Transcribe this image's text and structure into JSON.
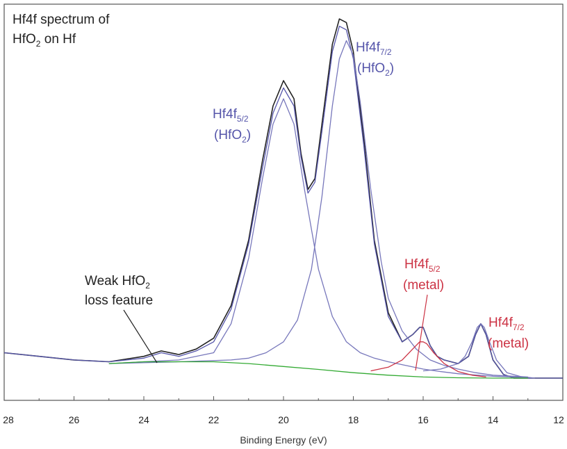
{
  "chart_data": {
    "type": "line",
    "xlabel": "Binding Energy (eV)",
    "xlim": [
      28,
      12
    ],
    "x_reversed": true,
    "x_ticks": [
      "28",
      "26",
      "24",
      "22",
      "20",
      "18",
      "16",
      "14",
      "12"
    ],
    "annotations": {
      "title": {
        "line1": "Hf4f spectrum of",
        "line2_pre": "HfO",
        "line2_sub": "2",
        "line2_post": " on Hf"
      },
      "hfo2_52": {
        "main": "Hf4f",
        "sub": "5/2",
        "line2_pre": "(HfO",
        "line2_sub": "2",
        "line2_post": ")"
      },
      "hfo2_72": {
        "main": "Hf4f",
        "sub": "7/2",
        "line2_pre": "(HfO",
        "line2_sub": "2",
        "line2_post": ")"
      },
      "metal_52": {
        "main": "Hf4f",
        "sub": "5/2",
        "line2": "(metal)"
      },
      "metal_72": {
        "main": "Hf4f",
        "sub": "7/2",
        "line2": "(metal)"
      },
      "loss": {
        "line1_pre": "Weak HfO",
        "line1_sub": "2",
        "line2": "loss feature"
      }
    },
    "series": [
      {
        "role": "measured",
        "color": "#222222",
        "x": [
          28.0,
          27.0,
          26.0,
          25.0,
          24.0,
          23.5,
          23.0,
          22.5,
          22.0,
          21.5,
          21.0,
          20.6,
          20.3,
          20.0,
          19.7,
          19.5,
          19.3,
          19.1,
          18.9,
          18.6,
          18.4,
          18.2,
          18.0,
          17.7,
          17.4,
          17.0,
          16.6,
          16.3,
          16.1,
          16.0,
          15.8,
          15.6,
          15.4,
          15.0,
          14.7,
          14.5,
          14.35,
          14.2,
          14.0,
          13.7,
          13.4,
          13.0,
          12.5,
          12.0
        ],
        "y": [
          0.07,
          0.06,
          0.05,
          0.045,
          0.06,
          0.075,
          0.065,
          0.08,
          0.11,
          0.2,
          0.38,
          0.6,
          0.75,
          0.82,
          0.77,
          0.62,
          0.52,
          0.55,
          0.7,
          0.92,
          0.99,
          0.98,
          0.9,
          0.66,
          0.38,
          0.18,
          0.1,
          0.12,
          0.14,
          0.14,
          0.09,
          0.06,
          0.05,
          0.04,
          0.06,
          0.12,
          0.15,
          0.12,
          0.05,
          0.01,
          0.0,
          0.0,
          0.0,
          0.0
        ]
      },
      {
        "role": "envelope-fit",
        "color": "#5555aa",
        "x": [
          28.0,
          27.0,
          26.0,
          25.0,
          24.0,
          23.5,
          23.0,
          22.5,
          22.0,
          21.5,
          21.0,
          20.6,
          20.3,
          20.0,
          19.7,
          19.5,
          19.3,
          19.1,
          18.9,
          18.6,
          18.4,
          18.2,
          18.0,
          17.7,
          17.4,
          17.0,
          16.6,
          16.3,
          16.1,
          16.0,
          15.8,
          15.6,
          15.4,
          15.0,
          14.7,
          14.5,
          14.35,
          14.2,
          14.0,
          13.7,
          13.4,
          13.0,
          12.5,
          12.0
        ],
        "y": [
          0.07,
          0.06,
          0.05,
          0.045,
          0.055,
          0.07,
          0.06,
          0.075,
          0.1,
          0.19,
          0.37,
          0.58,
          0.73,
          0.8,
          0.75,
          0.61,
          0.51,
          0.54,
          0.68,
          0.9,
          0.97,
          0.96,
          0.88,
          0.64,
          0.37,
          0.17,
          0.1,
          0.12,
          0.14,
          0.14,
          0.09,
          0.06,
          0.05,
          0.04,
          0.06,
          0.12,
          0.15,
          0.12,
          0.05,
          0.01,
          0.0,
          0.0,
          0.0,
          0.0
        ]
      },
      {
        "role": "component-HfO2-5/2",
        "color": "#7777bb",
        "x": [
          25.0,
          24.0,
          23.0,
          22.0,
          21.5,
          21.0,
          20.6,
          20.3,
          20.0,
          19.7,
          19.4,
          19.0,
          18.6,
          18.2,
          17.8,
          17.4,
          17.0,
          16.5,
          16.0,
          15.5,
          15.0,
          14.0,
          13.0
        ],
        "y": [
          0.04,
          0.045,
          0.05,
          0.07,
          0.15,
          0.33,
          0.55,
          0.7,
          0.77,
          0.7,
          0.52,
          0.3,
          0.17,
          0.1,
          0.07,
          0.055,
          0.045,
          0.035,
          0.025,
          0.018,
          0.012,
          0.005,
          0.002
        ]
      },
      {
        "role": "component-HfO2-7/2",
        "color": "#7777bb",
        "x": [
          25.0,
          23.0,
          21.5,
          21.0,
          20.5,
          20.0,
          19.6,
          19.2,
          18.9,
          18.6,
          18.4,
          18.2,
          18.0,
          17.8,
          17.5,
          17.2,
          17.0,
          16.6,
          16.2,
          15.8,
          15.4,
          15.0,
          14.5,
          14.0,
          13.0
        ],
        "y": [
          0.04,
          0.045,
          0.05,
          0.055,
          0.07,
          0.1,
          0.16,
          0.3,
          0.5,
          0.75,
          0.88,
          0.93,
          0.89,
          0.76,
          0.52,
          0.32,
          0.22,
          0.13,
          0.08,
          0.05,
          0.035,
          0.025,
          0.015,
          0.008,
          0.003
        ]
      },
      {
        "role": "component-metal-5/2",
        "color": "#cc3344",
        "x": [
          17.5,
          17.0,
          16.6,
          16.3,
          16.1,
          16.0,
          15.9,
          15.7,
          15.4,
          15.0,
          14.6,
          14.2
        ],
        "y": [
          0.02,
          0.03,
          0.05,
          0.08,
          0.1,
          0.1,
          0.095,
          0.07,
          0.04,
          0.018,
          0.008,
          0.003
        ]
      },
      {
        "role": "component-metal-7/2",
        "color": "#7777bb",
        "x": [
          16.0,
          15.5,
          15.0,
          14.8,
          14.6,
          14.45,
          14.35,
          14.25,
          14.1,
          13.9,
          13.6,
          13.2,
          12.8
        ],
        "y": [
          0.02,
          0.025,
          0.04,
          0.06,
          0.1,
          0.14,
          0.15,
          0.14,
          0.1,
          0.05,
          0.015,
          0.004,
          0.0
        ]
      },
      {
        "role": "background",
        "color": "#33aa33",
        "x": [
          25.0,
          24.0,
          23.0,
          22.0,
          21.0,
          20.0,
          19.0,
          18.0,
          17.0,
          16.0,
          15.0,
          14.0,
          13.0
        ],
        "y": [
          0.04,
          0.045,
          0.045,
          0.045,
          0.04,
          0.032,
          0.024,
          0.015,
          0.008,
          0.003,
          0.001,
          0.0,
          0.0
        ]
      }
    ]
  }
}
